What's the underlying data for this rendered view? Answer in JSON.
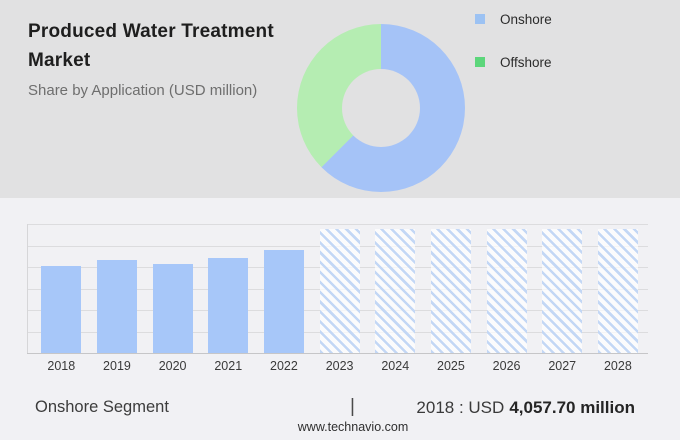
{
  "header": {
    "title": "Produced Water Treatment Market",
    "subtitle": "Share by Application (USD million)"
  },
  "legend": {
    "items": [
      {
        "label": "Onshore",
        "color": "#9cc2f3",
        "swatch": "blue-square"
      },
      {
        "label": "Offshore",
        "color": "#5cd67b",
        "swatch": "green-square"
      }
    ]
  },
  "chart_data": [
    {
      "type": "pie",
      "subtype": "donut",
      "title": "Share by Application (USD million)",
      "labels": [
        "Onshore",
        "Offshore"
      ],
      "values_pct": [
        62.5,
        37.5
      ],
      "colors": [
        "#a5c3f7",
        "#b5edb2"
      ],
      "hole_color": "#e1e1e2",
      "legend_position": "right",
      "start_angle_deg": 0,
      "direction": "clockwise"
    },
    {
      "type": "bar",
      "title": "Onshore Segment (USD million)",
      "categories": [
        "2018",
        "2019",
        "2020",
        "2021",
        "2022",
        "2023",
        "2024",
        "2025",
        "2026",
        "2027",
        "2028"
      ],
      "values": [
        4057.7,
        4340,
        4170,
        4450,
        4850,
        5810,
        5810,
        5810,
        5810,
        5810,
        5810
      ],
      "values_estimated_except_2018": true,
      "solid_years": [
        "2018",
        "2019",
        "2020",
        "2021",
        "2022"
      ],
      "hatched_years": [
        "2023",
        "2024",
        "2025",
        "2026",
        "2027",
        "2028"
      ],
      "bar_color": "#a7c7f9",
      "hatch_color": "#c3d7f5",
      "xlabel": "",
      "ylabel": "",
      "value_axis_ticks_visible": false,
      "grid": true,
      "gridline_count": 6
    }
  ],
  "footer": {
    "segment_label": "Onshore Segment",
    "separator": "|",
    "stat_prefix": "2018 : USD",
    "stat_value": "4,057.70 million",
    "website": "www.technavio.com"
  },
  "colors": {
    "top_background": "#e1e1e2",
    "bottom_background": "#f1f1f4",
    "gridline": "#dcdcde",
    "baseline": "#c6c6c8"
  }
}
